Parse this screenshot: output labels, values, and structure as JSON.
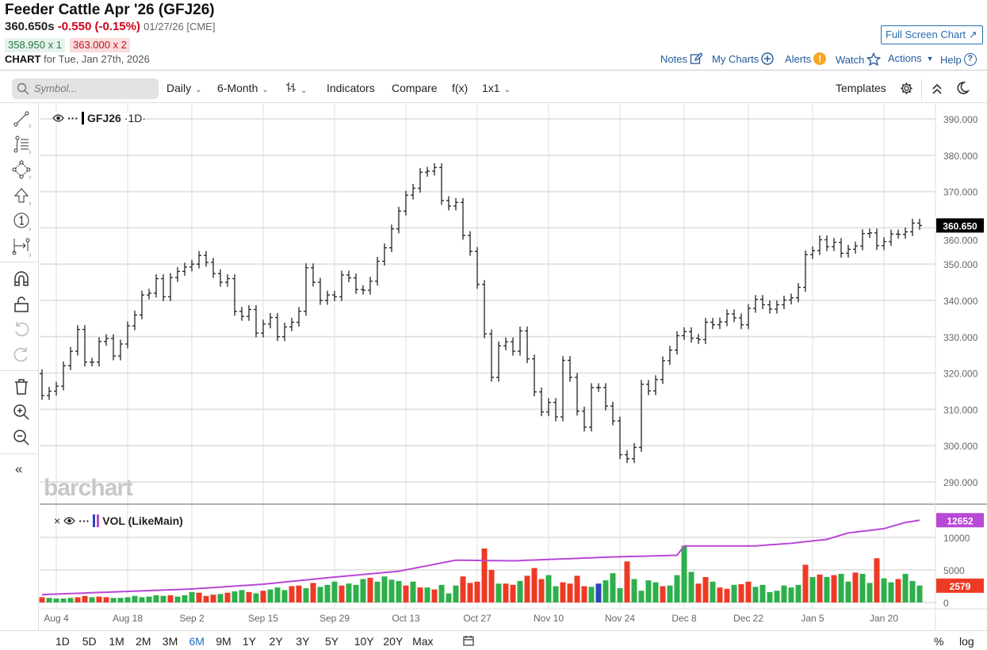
{
  "header": {
    "title": "Feeder Cattle Apr '26 (GFJ26)",
    "last": "360.650s",
    "change": "-0.550 (-0.15%)",
    "date": "01/27/26 [CME]",
    "bid": "358.950 x 1",
    "ask": "363.000 x 2",
    "chart_label": "CHART",
    "chart_for": "for Tue, Jan 27th, 2026",
    "fullscreen": "Full Screen Chart"
  },
  "links": {
    "notes": "Notes",
    "mycharts": "My Charts",
    "alerts": "Alerts",
    "watch": "Watch",
    "actions": "Actions",
    "help": "Help"
  },
  "toolbar": {
    "symbol_placeholder": "Symbol...",
    "interval": "Daily",
    "range": "6-Month",
    "indicators": "Indicators",
    "compare": "Compare",
    "fx": "f(x)",
    "layout": "1x1",
    "templates": "Templates"
  },
  "legend": {
    "symbol": "GFJ26",
    "interval": "·1D·",
    "vol": "VOL (LikeMain)"
  },
  "watermark": "barchart",
  "bottom": {
    "ranges": [
      "1D",
      "5D",
      "1M",
      "2M",
      "3M",
      "6M",
      "9M",
      "1Y",
      "2Y",
      "3Y",
      "5Y",
      "10Y",
      "20Y",
      "Max"
    ],
    "active": "6M",
    "percent": "%",
    "log": "log"
  },
  "colors": {
    "up": "#2db04b",
    "down": "#ee3a24",
    "highlight": "#2947b8",
    "avg": "#b848d6",
    "link": "#245b9c"
  },
  "chart_data": {
    "type": "ohlc",
    "title": "GFJ26 1D",
    "ylim": [
      288,
      392
    ],
    "yticks": [
      390,
      380,
      370,
      360,
      350,
      340,
      330,
      320,
      310,
      300,
      290
    ],
    "last_price": "360.650",
    "x_labels": [
      {
        "i": 2,
        "label": "Aug 4"
      },
      {
        "i": 12,
        "label": "Aug 18"
      },
      {
        "i": 21,
        "label": "Sep 2"
      },
      {
        "i": 31,
        "label": "Sep 15"
      },
      {
        "i": 41,
        "label": "Sep 29"
      },
      {
        "i": 51,
        "label": "Oct 13"
      },
      {
        "i": 61,
        "label": "Oct 27"
      },
      {
        "i": 71,
        "label": "Nov 10"
      },
      {
        "i": 81,
        "label": "Nov 24"
      },
      {
        "i": 90,
        "label": "Dec 8"
      },
      {
        "i": 99,
        "label": "Dec 22"
      },
      {
        "i": 108,
        "label": "Jan 5"
      },
      {
        "i": 118,
        "label": "Jan 20"
      }
    ],
    "close": [
      313.8,
      315,
      316.4,
      322,
      326,
      332,
      323,
      323,
      328.7,
      329.5,
      324.7,
      328,
      333,
      336,
      341.5,
      342,
      346,
      341,
      346.3,
      348,
      349.2,
      350,
      352.4,
      350.5,
      347.4,
      345,
      346,
      337,
      335.6,
      337.5,
      331,
      333.5,
      335.3,
      330,
      332.7,
      334,
      337,
      349,
      345,
      340,
      341.5,
      341,
      347,
      346.2,
      343,
      342.8,
      345.3,
      350.8,
      354.5,
      359.7,
      364.6,
      369,
      370.9,
      375.3,
      375.6,
      376.6,
      367.5,
      366,
      367,
      357.9,
      353.5,
      344.4,
      330.8,
      318.8,
      327.5,
      328.6,
      326,
      331.6,
      323.9,
      314.8,
      309.3,
      311.9,
      307.9,
      323.5,
      318.8,
      309.5,
      305.1,
      316,
      316,
      310.9,
      306.8,
      297.5,
      296.4,
      299.5,
      316.9,
      315.1,
      318.2,
      323.4,
      326.3,
      330.3,
      331.4,
      329.6,
      329.2,
      334,
      333.3,
      334.1,
      336.3,
      335.2,
      333.3,
      337.8,
      340.3,
      338.8,
      337.6,
      338.8,
      340.1,
      340.7,
      343.6,
      352.6,
      353.7,
      356.7,
      354.8,
      356,
      353,
      354.1,
      355,
      358.4,
      358.6,
      355.1,
      356.2,
      358.3,
      358.2,
      358.9,
      361.3,
      360.65
    ],
    "volume": {
      "yticks": [
        10000,
        5000,
        0
      ],
      "last_volume": "2579",
      "last_avg": "12652",
      "values": [
        800,
        700,
        600,
        600,
        700,
        800,
        1000,
        800,
        900,
        800,
        700,
        700,
        800,
        1000,
        800,
        900,
        1100,
        1000,
        1100,
        900,
        1100,
        1600,
        1500,
        1000,
        1200,
        1300,
        1500,
        1700,
        1900,
        1600,
        1400,
        1800,
        2000,
        2300,
        1900,
        2500,
        2600,
        2200,
        3000,
        2400,
        2700,
        3200,
        2600,
        2900,
        2700,
        3600,
        3800,
        3200,
        4000,
        3500,
        3300,
        2600,
        3200,
        2300,
        2300,
        2000,
        2700,
        1400,
        2600,
        4000,
        3000,
        3200,
        8300,
        5000,
        2900,
        2900,
        2700,
        3300,
        4100,
        5300,
        3600,
        4200,
        2500,
        3100,
        2900,
        4100,
        2500,
        2400,
        2900,
        3400,
        4500,
        2200,
        6300,
        3600,
        1800,
        3400,
        3100,
        2500,
        2600,
        4200,
        8700,
        4700,
        2900,
        3900,
        3200,
        2300,
        2100,
        2700,
        2800,
        3200,
        2400,
        2700,
        1600,
        1800,
        2600,
        2300,
        2700,
        5800,
        3900,
        4300,
        3900,
        4200,
        4400,
        3200,
        4600,
        4400,
        3000,
        6800,
        3700,
        3100,
        3600,
        4400,
        3300,
        2600
      ],
      "colors": "rggggrrgrrggggggggrgggrrrgrggrgrgggrrgrgggrgggrggggrgrgrgggrrrrrgrrgrrrggrrrrgbgggrggggrggggrrgrrgrrgggggggrgrgrggrggrggr",
      "avg_points": [
        {
          "i": 0,
          "v": 1200
        },
        {
          "i": 21,
          "v": 2070
        },
        {
          "i": 31,
          "v": 2800
        },
        {
          "i": 41,
          "v": 3900
        },
        {
          "i": 50,
          "v": 4800
        },
        {
          "i": 58,
          "v": 6500
        },
        {
          "i": 66,
          "v": 6400
        },
        {
          "i": 80,
          "v": 7000
        },
        {
          "i": 89,
          "v": 7250
        },
        {
          "i": 90,
          "v": 8700
        },
        {
          "i": 100,
          "v": 8700
        },
        {
          "i": 105,
          "v": 9100
        },
        {
          "i": 110,
          "v": 9700
        },
        {
          "i": 113,
          "v": 10700
        },
        {
          "i": 118,
          "v": 11350
        },
        {
          "i": 121,
          "v": 12300
        },
        {
          "i": 123,
          "v": 12650
        }
      ]
    }
  }
}
